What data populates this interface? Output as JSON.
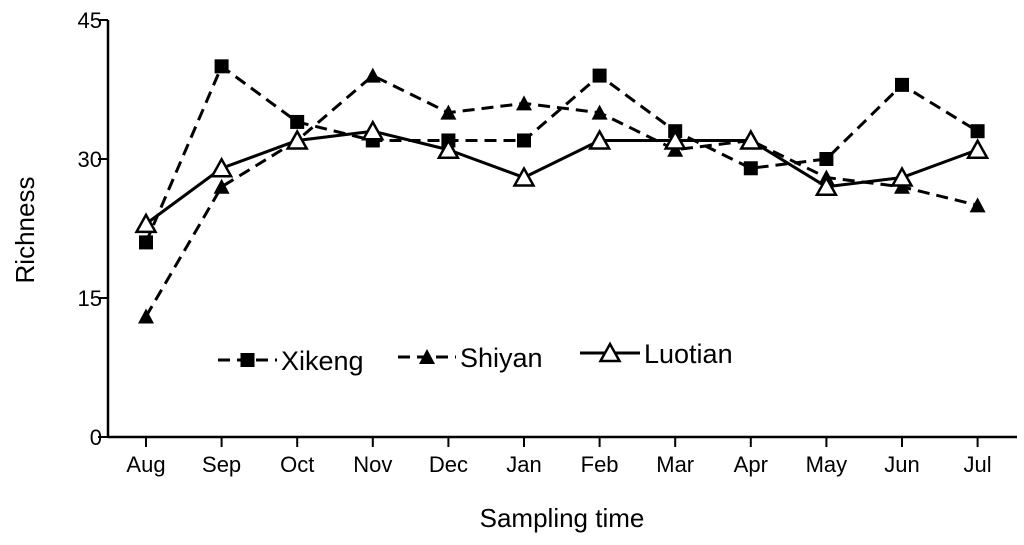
{
  "chart_data": {
    "type": "line",
    "xlabel": "Sampling time",
    "ylabel": "Richness",
    "ylim": [
      0,
      45
    ],
    "yticks": [
      0,
      15,
      30,
      45
    ],
    "categories": [
      "Aug",
      "Sep",
      "Oct",
      "Nov",
      "Dec",
      "Jan",
      "Feb",
      "Mar",
      "Apr",
      "May",
      "Jun",
      "Jul"
    ],
    "grid": false,
    "legend_position": "lower-center",
    "series": [
      {
        "name": "Xikeng",
        "marker": "square-filled",
        "line": "dashed",
        "color": "#000000",
        "values": [
          21,
          40,
          34,
          32,
          32,
          32,
          39,
          33,
          29,
          30,
          38,
          33
        ]
      },
      {
        "name": "Shiyan",
        "marker": "triangle-filled",
        "line": "dashed",
        "color": "#000000",
        "values": [
          13,
          27,
          32,
          39,
          35,
          36,
          35,
          31,
          32,
          28,
          27,
          25
        ]
      },
      {
        "name": "Luotian",
        "marker": "triangle-open",
        "line": "solid",
        "color": "#000000",
        "values": [
          23,
          29,
          32,
          33,
          31,
          28,
          32,
          32,
          32,
          27,
          28,
          31
        ]
      }
    ]
  }
}
